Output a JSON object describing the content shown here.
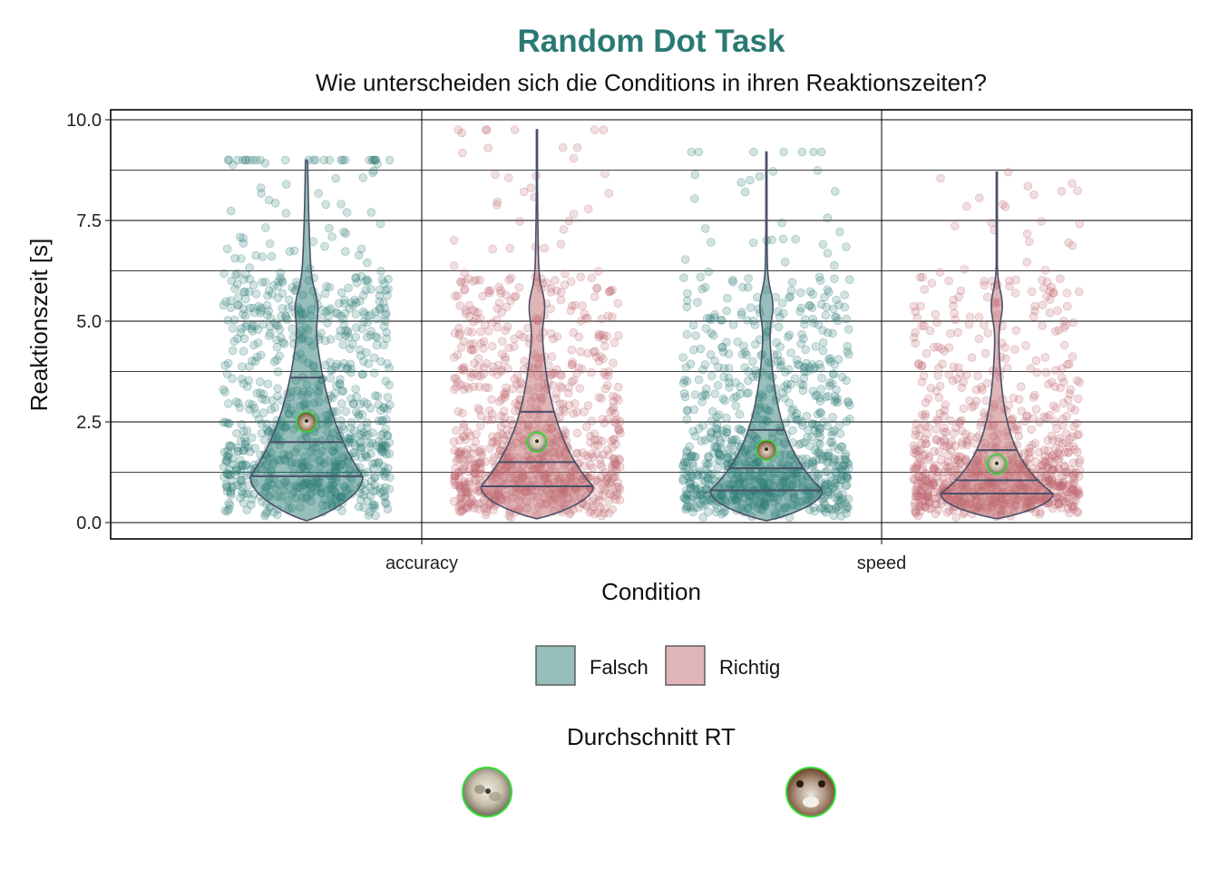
{
  "colors": {
    "falsch": "#2e7d76",
    "richtig": "#c06b70",
    "title": "#2a7a73",
    "violin_stroke": "#4a5068",
    "grid": "#000000"
  },
  "icons": {
    "avatar_left": "cat-photo-icon",
    "avatar_right": "dog-photo-icon"
  },
  "chart_data": {
    "type": "violin",
    "title": "Random Dot Task",
    "subtitle": "Wie unterscheiden sich die Conditions in ihren Reaktionszeiten?",
    "xlabel": "Condition",
    "ylabel": "Reaktionszeit [s]",
    "categories": [
      "accuracy",
      "speed"
    ],
    "y_ticks": [
      "0.0",
      "2.5",
      "5.0",
      "7.5",
      "10.0"
    ],
    "ylim": [
      -0.4,
      10.2
    ],
    "grid": true,
    "legend": {
      "position": "bottom",
      "entries": [
        "Falsch",
        "Richtig"
      ],
      "mean_title": "Durchschnitt RT"
    },
    "series": [
      {
        "name": "Falsch",
        "condition": "accuracy",
        "quartiles": [
          1.15,
          2.0,
          3.6
        ],
        "mean_rt": 2.5,
        "range": [
          0.05,
          9.0
        ],
        "density_peak": 1.15
      },
      {
        "name": "Richtig",
        "condition": "accuracy",
        "quartiles": [
          0.9,
          1.5,
          2.75
        ],
        "mean_rt": 2.0,
        "range": [
          0.1,
          9.75
        ],
        "density_peak": 0.9
      },
      {
        "name": "Falsch",
        "condition": "speed",
        "quartiles": [
          0.8,
          1.35,
          2.3
        ],
        "mean_rt": 1.8,
        "range": [
          0.05,
          9.2
        ],
        "density_peak": 0.8
      },
      {
        "name": "Richtig",
        "condition": "speed",
        "quartiles": [
          0.72,
          1.05,
          1.8
        ],
        "mean_rt": 1.45,
        "range": [
          0.1,
          8.7
        ],
        "density_peak": 0.72
      }
    ]
  }
}
